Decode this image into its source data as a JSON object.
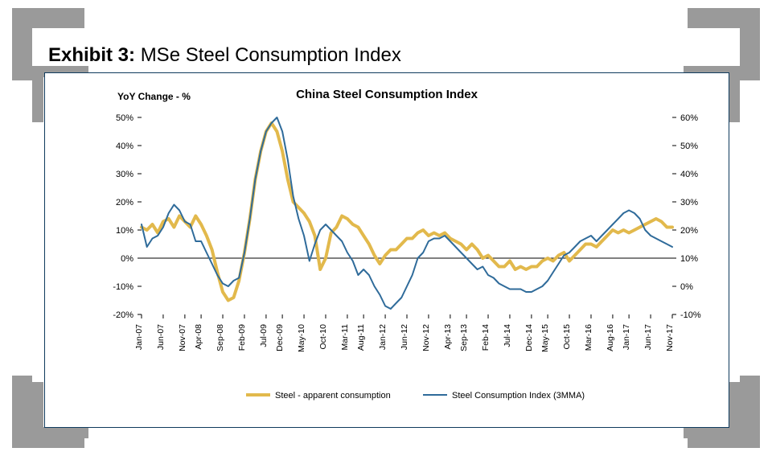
{
  "exhibit": {
    "label": "Exhibit 3:",
    "title": "MSe Steel Consumption Index"
  },
  "chart": {
    "type": "line",
    "yoy_label": "YoY Change - %",
    "title": "China Steel Consumption Index",
    "background_color": "#ffffff",
    "frame_border_color": "#0f3a5d",
    "axis_color": "#000000",
    "tick_color": "#000000",
    "baseline_color": "#000000",
    "grid_on": false,
    "title_fontsize": 15,
    "label_fontsize": 12,
    "tick_fontsize": 11,
    "x_labels": [
      "Jan-07",
      "Jun-07",
      "Nov-07",
      "Apr-08",
      "Sep-08",
      "Feb-09",
      "Jul-09",
      "Dec-09",
      "May-10",
      "Oct-10",
      "Mar-11",
      "Aug-11",
      "Jan-12",
      "Jun-12",
      "Nov-12",
      "Apr-13",
      "Sep-13",
      "Feb-14",
      "Jul-14",
      "Dec-14",
      "May-15",
      "Oct-15",
      "Mar-16",
      "Aug-16",
      "Jan-17",
      "Jun-17",
      "Nov-17"
    ],
    "left_axis": {
      "min": -20,
      "max": 50,
      "step": 10,
      "ticks": [
        -20,
        -10,
        0,
        10,
        20,
        30,
        40,
        50
      ],
      "labels": [
        "-20%",
        "-10%",
        "0%",
        "10%",
        "20%",
        "30%",
        "40%",
        "50%"
      ]
    },
    "right_axis": {
      "min": -10,
      "max": 60,
      "step": 10,
      "ticks": [
        -10,
        0,
        10,
        20,
        30,
        40,
        50,
        60
      ],
      "labels": [
        "-10%",
        "0%",
        "10%",
        "20%",
        "30%",
        "40%",
        "50%",
        "60%"
      ]
    },
    "legend": {
      "series1": "Steel - apparent consumption",
      "series2": "Steel Consumption Index (3MMA)"
    },
    "series": [
      {
        "name": "Steel - apparent consumption",
        "axis": "left",
        "color": "#e2b94c",
        "line_width": 4,
        "values": [
          11,
          10,
          12,
          9,
          13,
          14,
          11,
          15,
          13,
          11,
          15,
          12,
          8,
          3,
          -5,
          -12,
          -15,
          -14,
          -8,
          2,
          14,
          28,
          38,
          45,
          48,
          45,
          38,
          28,
          20,
          18,
          16,
          13,
          8,
          -4,
          0,
          9,
          11,
          15,
          14,
          12,
          11,
          8,
          5,
          1,
          -2,
          1,
          3,
          3,
          5,
          7,
          7,
          9,
          10,
          8,
          9,
          8,
          9,
          7,
          6,
          5,
          3,
          5,
          3,
          0,
          1,
          -1,
          -3,
          -3,
          -1,
          -4,
          -3,
          -4,
          -3,
          -3,
          -1,
          0,
          -1,
          1,
          2,
          -1,
          1,
          3,
          5,
          5,
          4,
          6,
          8,
          10,
          9,
          10,
          9,
          10,
          11,
          12,
          13,
          14,
          13,
          11,
          11
        ]
      },
      {
        "name": "Steel Consumption Index (3MMA)",
        "axis": "right",
        "color": "#2f6b9a",
        "line_width": 2,
        "values": [
          22,
          14,
          17,
          18,
          21,
          26,
          29,
          27,
          23,
          22,
          16,
          16,
          12,
          8,
          4,
          1,
          0,
          2,
          3,
          12,
          24,
          38,
          48,
          55,
          58,
          60,
          55,
          45,
          32,
          24,
          18,
          9,
          15,
          20,
          22,
          20,
          18,
          16,
          12,
          9,
          4,
          6,
          4,
          0,
          -3,
          -7,
          -8,
          -6,
          -4,
          0,
          4,
          10,
          12,
          16,
          17,
          17,
          18,
          16,
          14,
          12,
          10,
          8,
          6,
          7,
          4,
          3,
          1,
          0,
          -1,
          -1,
          -1,
          -2,
          -2,
          -1,
          0,
          2,
          5,
          8,
          11,
          12,
          14,
          16,
          17,
          18,
          16,
          18,
          20,
          22,
          24,
          26,
          27,
          26,
          24,
          20,
          18,
          17,
          16,
          15,
          14
        ]
      }
    ],
    "n_points": 99
  },
  "decoration": {
    "corner_color": "#9a9a9a"
  }
}
